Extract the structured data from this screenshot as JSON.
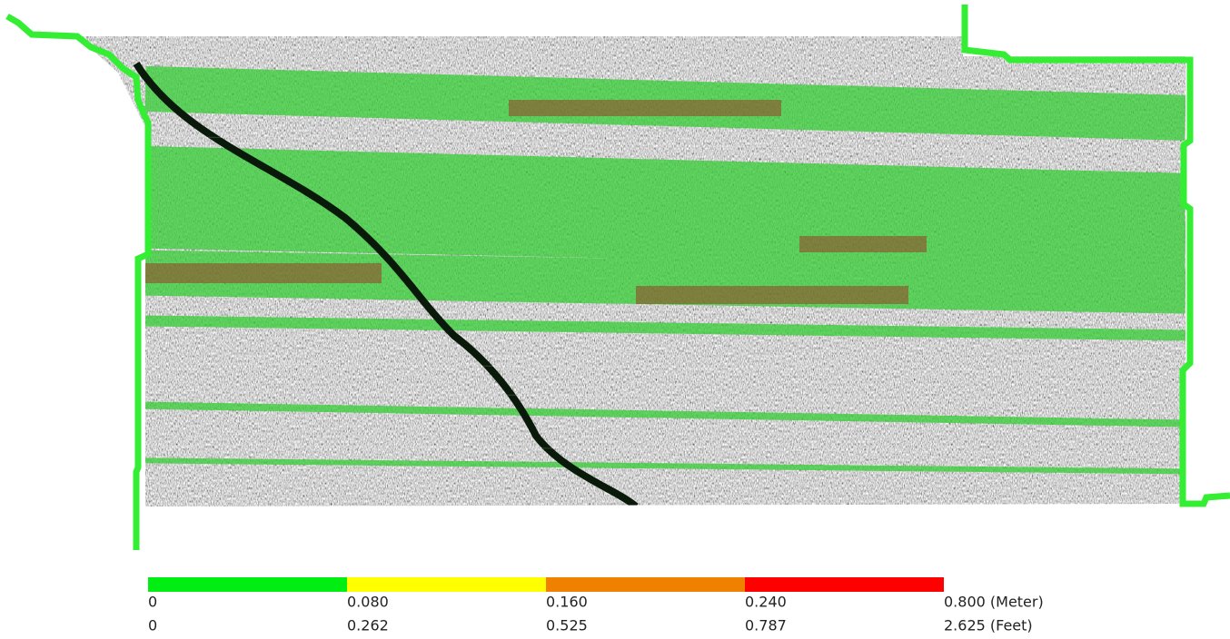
{
  "legend": {
    "colors": [
      "#00ee11",
      "#ffff00",
      "#f08000",
      "#ff0000"
    ],
    "meter_labels": [
      "0",
      "0.080",
      "0.160",
      "0.240",
      "0.800 (Meter)"
    ],
    "feet_labels": [
      "0",
      "0.262",
      "0.525",
      "0.787",
      "2.625 (Feet)"
    ]
  }
}
